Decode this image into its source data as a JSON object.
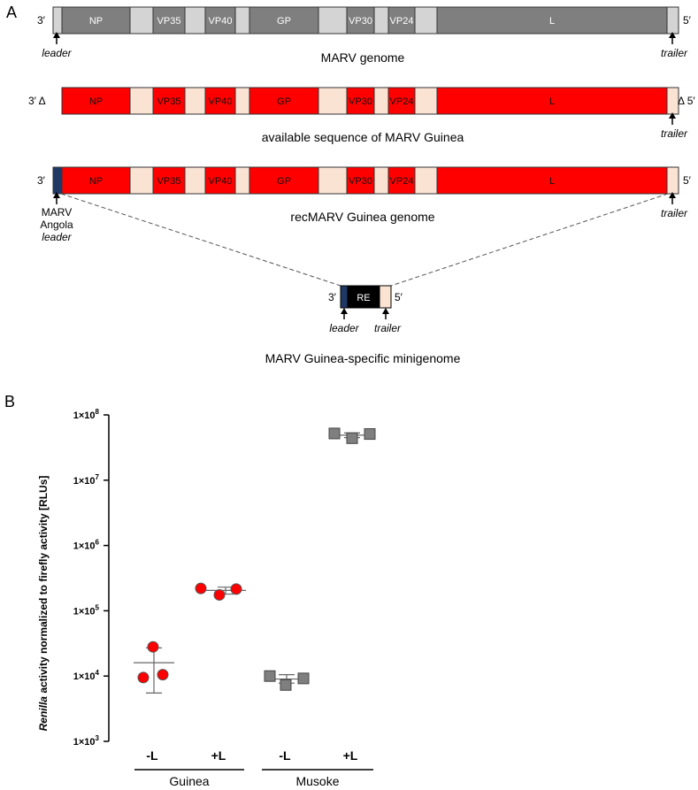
{
  "panel_a": {
    "label": "A",
    "genome_rows": [
      {
        "left_end": "3′",
        "right_end": "5′",
        "caption": "MARV genome",
        "scheme": "gray",
        "genes": [
          "NP",
          "VP35",
          "VP40",
          "GP",
          "VP30",
          "VP24",
          "L"
        ],
        "leader_label": "leader",
        "trailer_label": "trailer"
      },
      {
        "left_end": "3′ Δ",
        "right_end": "Δ 5′",
        "caption": "available sequence of MARV Guinea",
        "scheme": "red",
        "genes": [
          "NP",
          "VP35",
          "VP40",
          "GP",
          "VP30",
          "VP24",
          "L"
        ],
        "trailer_label": "trailer"
      },
      {
        "left_end": "3′",
        "right_end": "5′",
        "caption": "recMARV Guinea genome",
        "scheme": "red",
        "genes": [
          "NP",
          "VP35",
          "VP40",
          "GP",
          "VP30",
          "VP24",
          "L"
        ],
        "leader_lines": [
          "MARV",
          "Angola",
          "leader"
        ],
        "trailer_label": "trailer"
      }
    ],
    "minigenome": {
      "left_end": "3′",
      "right_end": "5′",
      "reporter": "RE",
      "leader_label": "leader",
      "trailer_label": "trailer",
      "caption": "MARV Guinea-specific minigenome"
    },
    "colors": {
      "gray_gene": "#7f7f7f",
      "gray_intergenic": "#d4d4d4",
      "red_gene": "#ff0000",
      "red_intergenic": "#fbe3d4",
      "angola_leader": "#1f3864",
      "reporter": "#000000"
    }
  },
  "panel_b": {
    "label": "B",
    "ylabel_italic": "Renilla",
    "ylabel_rest": " activity normalized to firefly activity [RLUs]",
    "y_ticks": [
      {
        "base": "1×10",
        "exp": "3"
      },
      {
        "base": "1×10",
        "exp": "4"
      },
      {
        "base": "1×10",
        "exp": "5"
      },
      {
        "base": "1×10",
        "exp": "6"
      },
      {
        "base": "1×10",
        "exp": "7"
      },
      {
        "base": "1×10",
        "exp": "8"
      }
    ],
    "groups": [
      "Guinea",
      "Musoke"
    ]
  },
  "chart_data": {
    "type": "scatter",
    "yscale": "log",
    "ylim": [
      1000,
      100000000
    ],
    "ylabel": "Renilla activity normalized to firefly activity [RLUs]",
    "categories": [
      "-L",
      "+L",
      "-L",
      "+L"
    ],
    "groups": [
      {
        "name": "Guinea",
        "categories": [
          0,
          1
        ]
      },
      {
        "name": "Musoke",
        "categories": [
          2,
          3
        ]
      }
    ],
    "series": [
      {
        "category": "-L",
        "group": "Guinea",
        "marker": "circle",
        "color": "#ff0000",
        "points": [
          28000,
          9500,
          10500
        ],
        "mean": 16000,
        "err_low": 5500,
        "err_high": 27000
      },
      {
        "category": "+L",
        "group": "Guinea",
        "marker": "circle",
        "color": "#ff0000",
        "points": [
          220000,
          175000,
          215000
        ],
        "mean": 205000,
        "err_low": 180000,
        "err_high": 230000
      },
      {
        "category": "-L",
        "group": "Musoke",
        "marker": "square",
        "color": "#7f7f7f",
        "points": [
          10000,
          7300,
          9200
        ],
        "mean": 9000,
        "err_low": 7800,
        "err_high": 10500
      },
      {
        "category": "+L",
        "group": "Musoke",
        "marker": "square",
        "color": "#7f7f7f",
        "points": [
          52000000,
          44000000,
          51000000
        ],
        "mean": 49000000,
        "err_low": 45000000,
        "err_high": 53000000
      }
    ]
  }
}
